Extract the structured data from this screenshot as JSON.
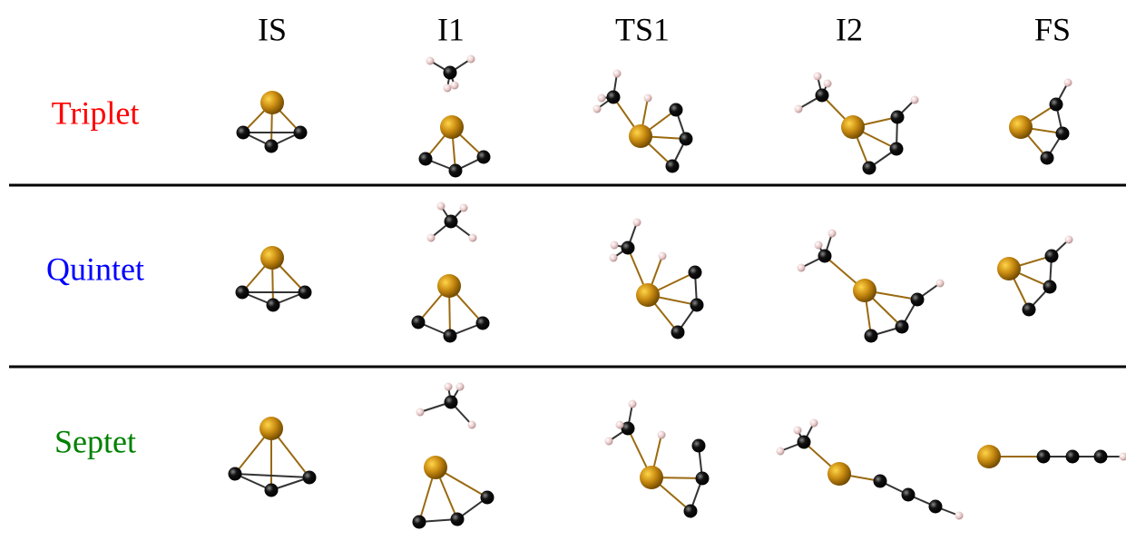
{
  "columns": [
    "IS",
    "I1",
    "TS1",
    "I2",
    "FS"
  ],
  "rows": [
    {
      "label": "Triplet",
      "color": "#ff0000"
    },
    {
      "label": "Quintet",
      "color": "#0000ff"
    },
    {
      "label": "Septet",
      "color": "#008000"
    }
  ]
}
